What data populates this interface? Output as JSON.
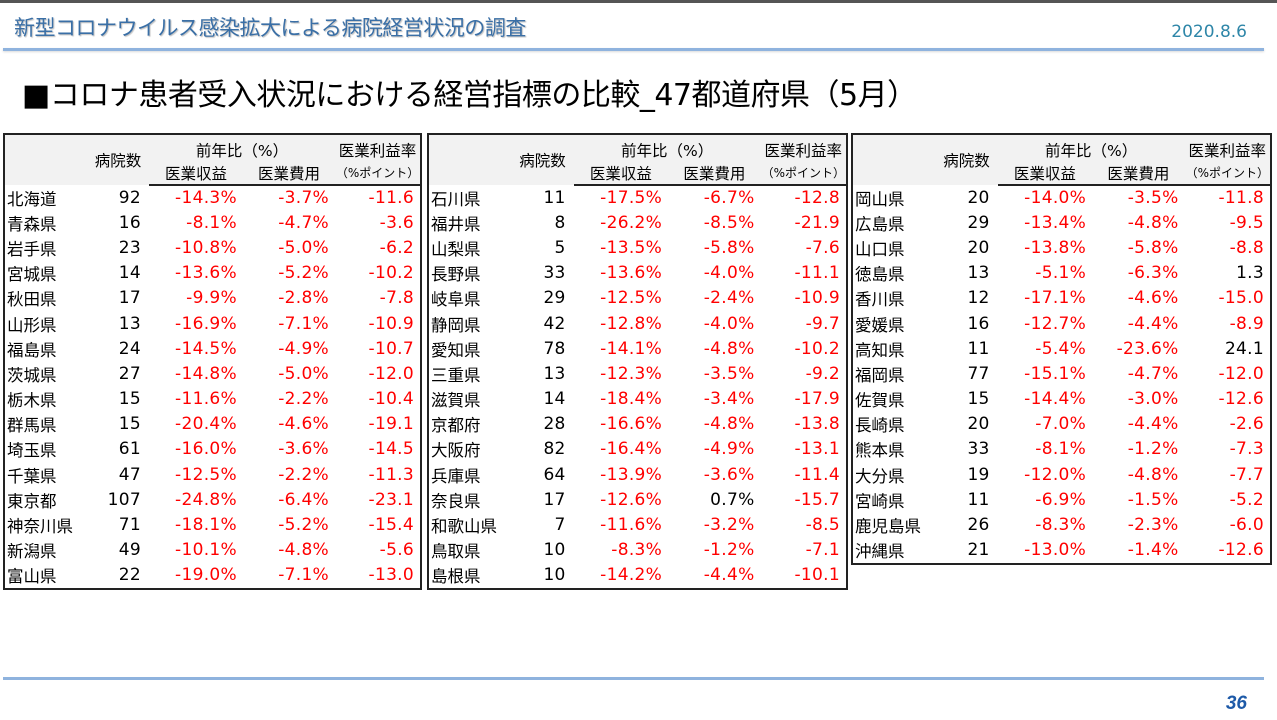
{
  "header": {
    "title": "新型コロナウイルス感染拡大による病院経営状況の調査",
    "date": "2020.8.6"
  },
  "page_title": "■コロナ患者受入状況における経営指標の比較_47都道府県（5月）",
  "columns": {
    "hospital_count": "病院数",
    "yoy_group": "前年比（%）",
    "revenue": "医業収益",
    "expense": "医業費用",
    "margin": "医業利益率",
    "margin_unit": "（%ポイント）"
  },
  "colors": {
    "negative": "#ff0000",
    "positive": "#000000",
    "accent_line": "#8fb3de",
    "title_blue": "#3a6fa6",
    "page_number": "#1e5aa8"
  },
  "tables": [
    {
      "rows": [
        {
          "name": "北海道",
          "count": "92",
          "revenue": "-14.3%",
          "expense": "-3.7%",
          "margin": "-11.6"
        },
        {
          "name": "青森県",
          "count": "16",
          "revenue": "-8.1%",
          "expense": "-4.7%",
          "margin": "-3.6"
        },
        {
          "name": "岩手県",
          "count": "23",
          "revenue": "-10.8%",
          "expense": "-5.0%",
          "margin": "-6.2"
        },
        {
          "name": "宮城県",
          "count": "14",
          "revenue": "-13.6%",
          "expense": "-5.2%",
          "margin": "-10.2"
        },
        {
          "name": "秋田県",
          "count": "17",
          "revenue": "-9.9%",
          "expense": "-2.8%",
          "margin": "-7.8"
        },
        {
          "name": "山形県",
          "count": "13",
          "revenue": "-16.9%",
          "expense": "-7.1%",
          "margin": "-10.9"
        },
        {
          "name": "福島県",
          "count": "24",
          "revenue": "-14.5%",
          "expense": "-4.9%",
          "margin": "-10.7"
        },
        {
          "name": "茨城県",
          "count": "27",
          "revenue": "-14.8%",
          "expense": "-5.0%",
          "margin": "-12.0"
        },
        {
          "name": "栃木県",
          "count": "15",
          "revenue": "-11.6%",
          "expense": "-2.2%",
          "margin": "-10.4"
        },
        {
          "name": "群馬県",
          "count": "15",
          "revenue": "-20.4%",
          "expense": "-4.6%",
          "margin": "-19.1"
        },
        {
          "name": "埼玉県",
          "count": "61",
          "revenue": "-16.0%",
          "expense": "-3.6%",
          "margin": "-14.5"
        },
        {
          "name": "千葉県",
          "count": "47",
          "revenue": "-12.5%",
          "expense": "-2.2%",
          "margin": "-11.3"
        },
        {
          "name": "東京都",
          "count": "107",
          "revenue": "-24.8%",
          "expense": "-6.4%",
          "margin": "-23.1"
        },
        {
          "name": "神奈川県",
          "count": "71",
          "revenue": "-18.1%",
          "expense": "-5.2%",
          "margin": "-15.4"
        },
        {
          "name": "新潟県",
          "count": "49",
          "revenue": "-10.1%",
          "expense": "-4.8%",
          "margin": "-5.6"
        },
        {
          "name": "富山県",
          "count": "22",
          "revenue": "-19.0%",
          "expense": "-7.1%",
          "margin": "-13.0"
        }
      ]
    },
    {
      "rows": [
        {
          "name": "石川県",
          "count": "11",
          "revenue": "-17.5%",
          "expense": "-6.7%",
          "margin": "-12.8"
        },
        {
          "name": "福井県",
          "count": "8",
          "revenue": "-26.2%",
          "expense": "-8.5%",
          "margin": "-21.9"
        },
        {
          "name": "山梨県",
          "count": "5",
          "revenue": "-13.5%",
          "expense": "-5.8%",
          "margin": "-7.6"
        },
        {
          "name": "長野県",
          "count": "33",
          "revenue": "-13.6%",
          "expense": "-4.0%",
          "margin": "-11.1"
        },
        {
          "name": "岐阜県",
          "count": "29",
          "revenue": "-12.5%",
          "expense": "-2.4%",
          "margin": "-10.9"
        },
        {
          "name": "静岡県",
          "count": "42",
          "revenue": "-12.8%",
          "expense": "-4.0%",
          "margin": "-9.7"
        },
        {
          "name": "愛知県",
          "count": "78",
          "revenue": "-14.1%",
          "expense": "-4.8%",
          "margin": "-10.2"
        },
        {
          "name": "三重県",
          "count": "13",
          "revenue": "-12.3%",
          "expense": "-3.5%",
          "margin": "-9.2"
        },
        {
          "name": "滋賀県",
          "count": "14",
          "revenue": "-18.4%",
          "expense": "-3.4%",
          "margin": "-17.9"
        },
        {
          "name": "京都府",
          "count": "28",
          "revenue": "-16.6%",
          "expense": "-4.8%",
          "margin": "-13.8"
        },
        {
          "name": "大阪府",
          "count": "82",
          "revenue": "-16.4%",
          "expense": "-4.9%",
          "margin": "-13.1"
        },
        {
          "name": "兵庫県",
          "count": "64",
          "revenue": "-13.9%",
          "expense": "-3.6%",
          "margin": "-11.4"
        },
        {
          "name": "奈良県",
          "count": "17",
          "revenue": "-12.6%",
          "expense": "0.7%",
          "margin": "-15.7"
        },
        {
          "name": "和歌山県",
          "count": "7",
          "revenue": "-11.6%",
          "expense": "-3.2%",
          "margin": "-8.5"
        },
        {
          "name": "鳥取県",
          "count": "10",
          "revenue": "-8.3%",
          "expense": "-1.2%",
          "margin": "-7.1"
        },
        {
          "name": "島根県",
          "count": "10",
          "revenue": "-14.2%",
          "expense": "-4.4%",
          "margin": "-10.1"
        }
      ]
    },
    {
      "rows": [
        {
          "name": "岡山県",
          "count": "20",
          "revenue": "-14.0%",
          "expense": "-3.5%",
          "margin": "-11.8"
        },
        {
          "name": "広島県",
          "count": "29",
          "revenue": "-13.4%",
          "expense": "-4.8%",
          "margin": "-9.5"
        },
        {
          "name": "山口県",
          "count": "20",
          "revenue": "-13.8%",
          "expense": "-5.8%",
          "margin": "-8.8"
        },
        {
          "name": "徳島県",
          "count": "13",
          "revenue": "-5.1%",
          "expense": "-6.3%",
          "margin": "1.3"
        },
        {
          "name": "香川県",
          "count": "12",
          "revenue": "-17.1%",
          "expense": "-4.6%",
          "margin": "-15.0"
        },
        {
          "name": "愛媛県",
          "count": "16",
          "revenue": "-12.7%",
          "expense": "-4.4%",
          "margin": "-8.9"
        },
        {
          "name": "高知県",
          "count": "11",
          "revenue": "-5.4%",
          "expense": "-23.6%",
          "margin": "24.1"
        },
        {
          "name": "福岡県",
          "count": "77",
          "revenue": "-15.1%",
          "expense": "-4.7%",
          "margin": "-12.0"
        },
        {
          "name": "佐賀県",
          "count": "15",
          "revenue": "-14.4%",
          "expense": "-3.0%",
          "margin": "-12.6"
        },
        {
          "name": "長崎県",
          "count": "20",
          "revenue": "-7.0%",
          "expense": "-4.4%",
          "margin": "-2.6"
        },
        {
          "name": "熊本県",
          "count": "33",
          "revenue": "-8.1%",
          "expense": "-1.2%",
          "margin": "-7.3"
        },
        {
          "name": "大分県",
          "count": "19",
          "revenue": "-12.0%",
          "expense": "-4.8%",
          "margin": "-7.7"
        },
        {
          "name": "宮崎県",
          "count": "11",
          "revenue": "-6.9%",
          "expense": "-1.5%",
          "margin": "-5.2"
        },
        {
          "name": "鹿児島県",
          "count": "26",
          "revenue": "-8.3%",
          "expense": "-2.3%",
          "margin": "-6.0"
        },
        {
          "name": "沖縄県",
          "count": "21",
          "revenue": "-13.0%",
          "expense": "-1.4%",
          "margin": "-12.6"
        }
      ]
    }
  ],
  "footer": {
    "page_number": "36"
  }
}
